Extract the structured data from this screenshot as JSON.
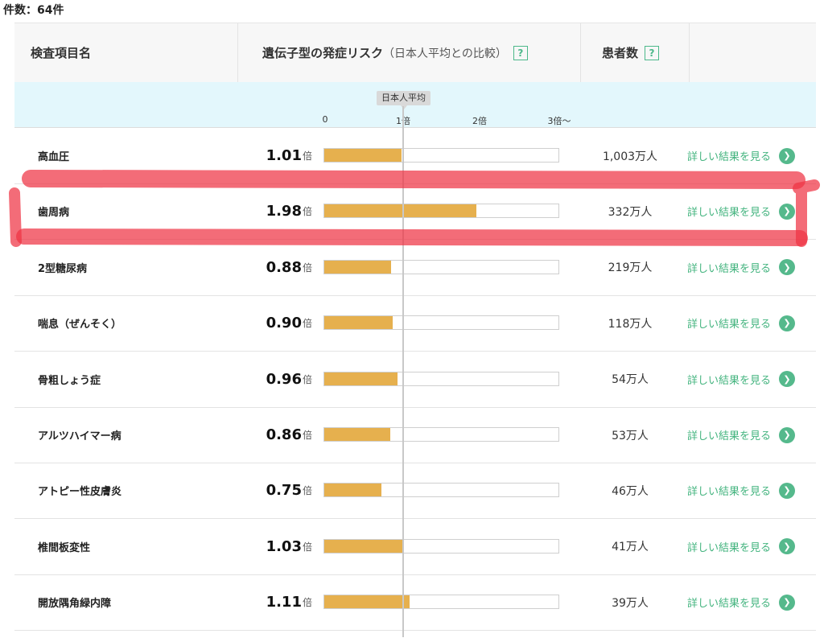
{
  "summary": {
    "count_label": "件数：64件"
  },
  "header": {
    "item_name": "検査項目名",
    "risk_label": "遺伝子型の発症リスク",
    "risk_sub": "（日本人平均との比較）",
    "help": "?",
    "patients_label": "患者数"
  },
  "scale": {
    "average_tag": "日本人平均",
    "ticks": [
      "0",
      "1倍",
      "2倍",
      "3倍〜"
    ]
  },
  "rows": [
    {
      "name": "高血圧",
      "ratio": "1.01",
      "unit": "倍",
      "value": 1.01,
      "patients": "1,003万人",
      "detail": "詳しい結果を見る"
    },
    {
      "name": "歯周病",
      "ratio": "1.98",
      "unit": "倍",
      "value": 1.98,
      "patients": "332万人",
      "detail": "詳しい結果を見る"
    },
    {
      "name": "2型糖尿病",
      "ratio": "0.88",
      "unit": "倍",
      "value": 0.88,
      "patients": "219万人",
      "detail": "詳しい結果を見る"
    },
    {
      "name": "喘息（ぜんそく）",
      "ratio": "0.90",
      "unit": "倍",
      "value": 0.9,
      "patients": "118万人",
      "detail": "詳しい結果を見る"
    },
    {
      "name": "骨粗しょう症",
      "ratio": "0.96",
      "unit": "倍",
      "value": 0.96,
      "patients": "54万人",
      "detail": "詳しい結果を見る"
    },
    {
      "name": "アルツハイマー病",
      "ratio": "0.86",
      "unit": "倍",
      "value": 0.86,
      "patients": "53万人",
      "detail": "詳しい結果を見る"
    },
    {
      "name": "アトピー性皮膚炎",
      "ratio": "0.75",
      "unit": "倍",
      "value": 0.75,
      "patients": "46万人",
      "detail": "詳しい結果を見る"
    },
    {
      "name": "椎間板変性",
      "ratio": "1.03",
      "unit": "倍",
      "value": 1.03,
      "patients": "41万人",
      "detail": "詳しい結果を見る"
    },
    {
      "name": "開放隅角緑内障",
      "ratio": "1.11",
      "unit": "倍",
      "value": 1.11,
      "patients": "39万人",
      "detail": "詳しい結果を見る"
    }
  ],
  "colors": {
    "bar": "#e6b04e",
    "accent": "#44b47f",
    "scale_bg": "#e3f7fc",
    "highlight": "#ee3344"
  },
  "icons": {
    "go": "chevron-right-icon",
    "help": "question-mark-icon"
  }
}
